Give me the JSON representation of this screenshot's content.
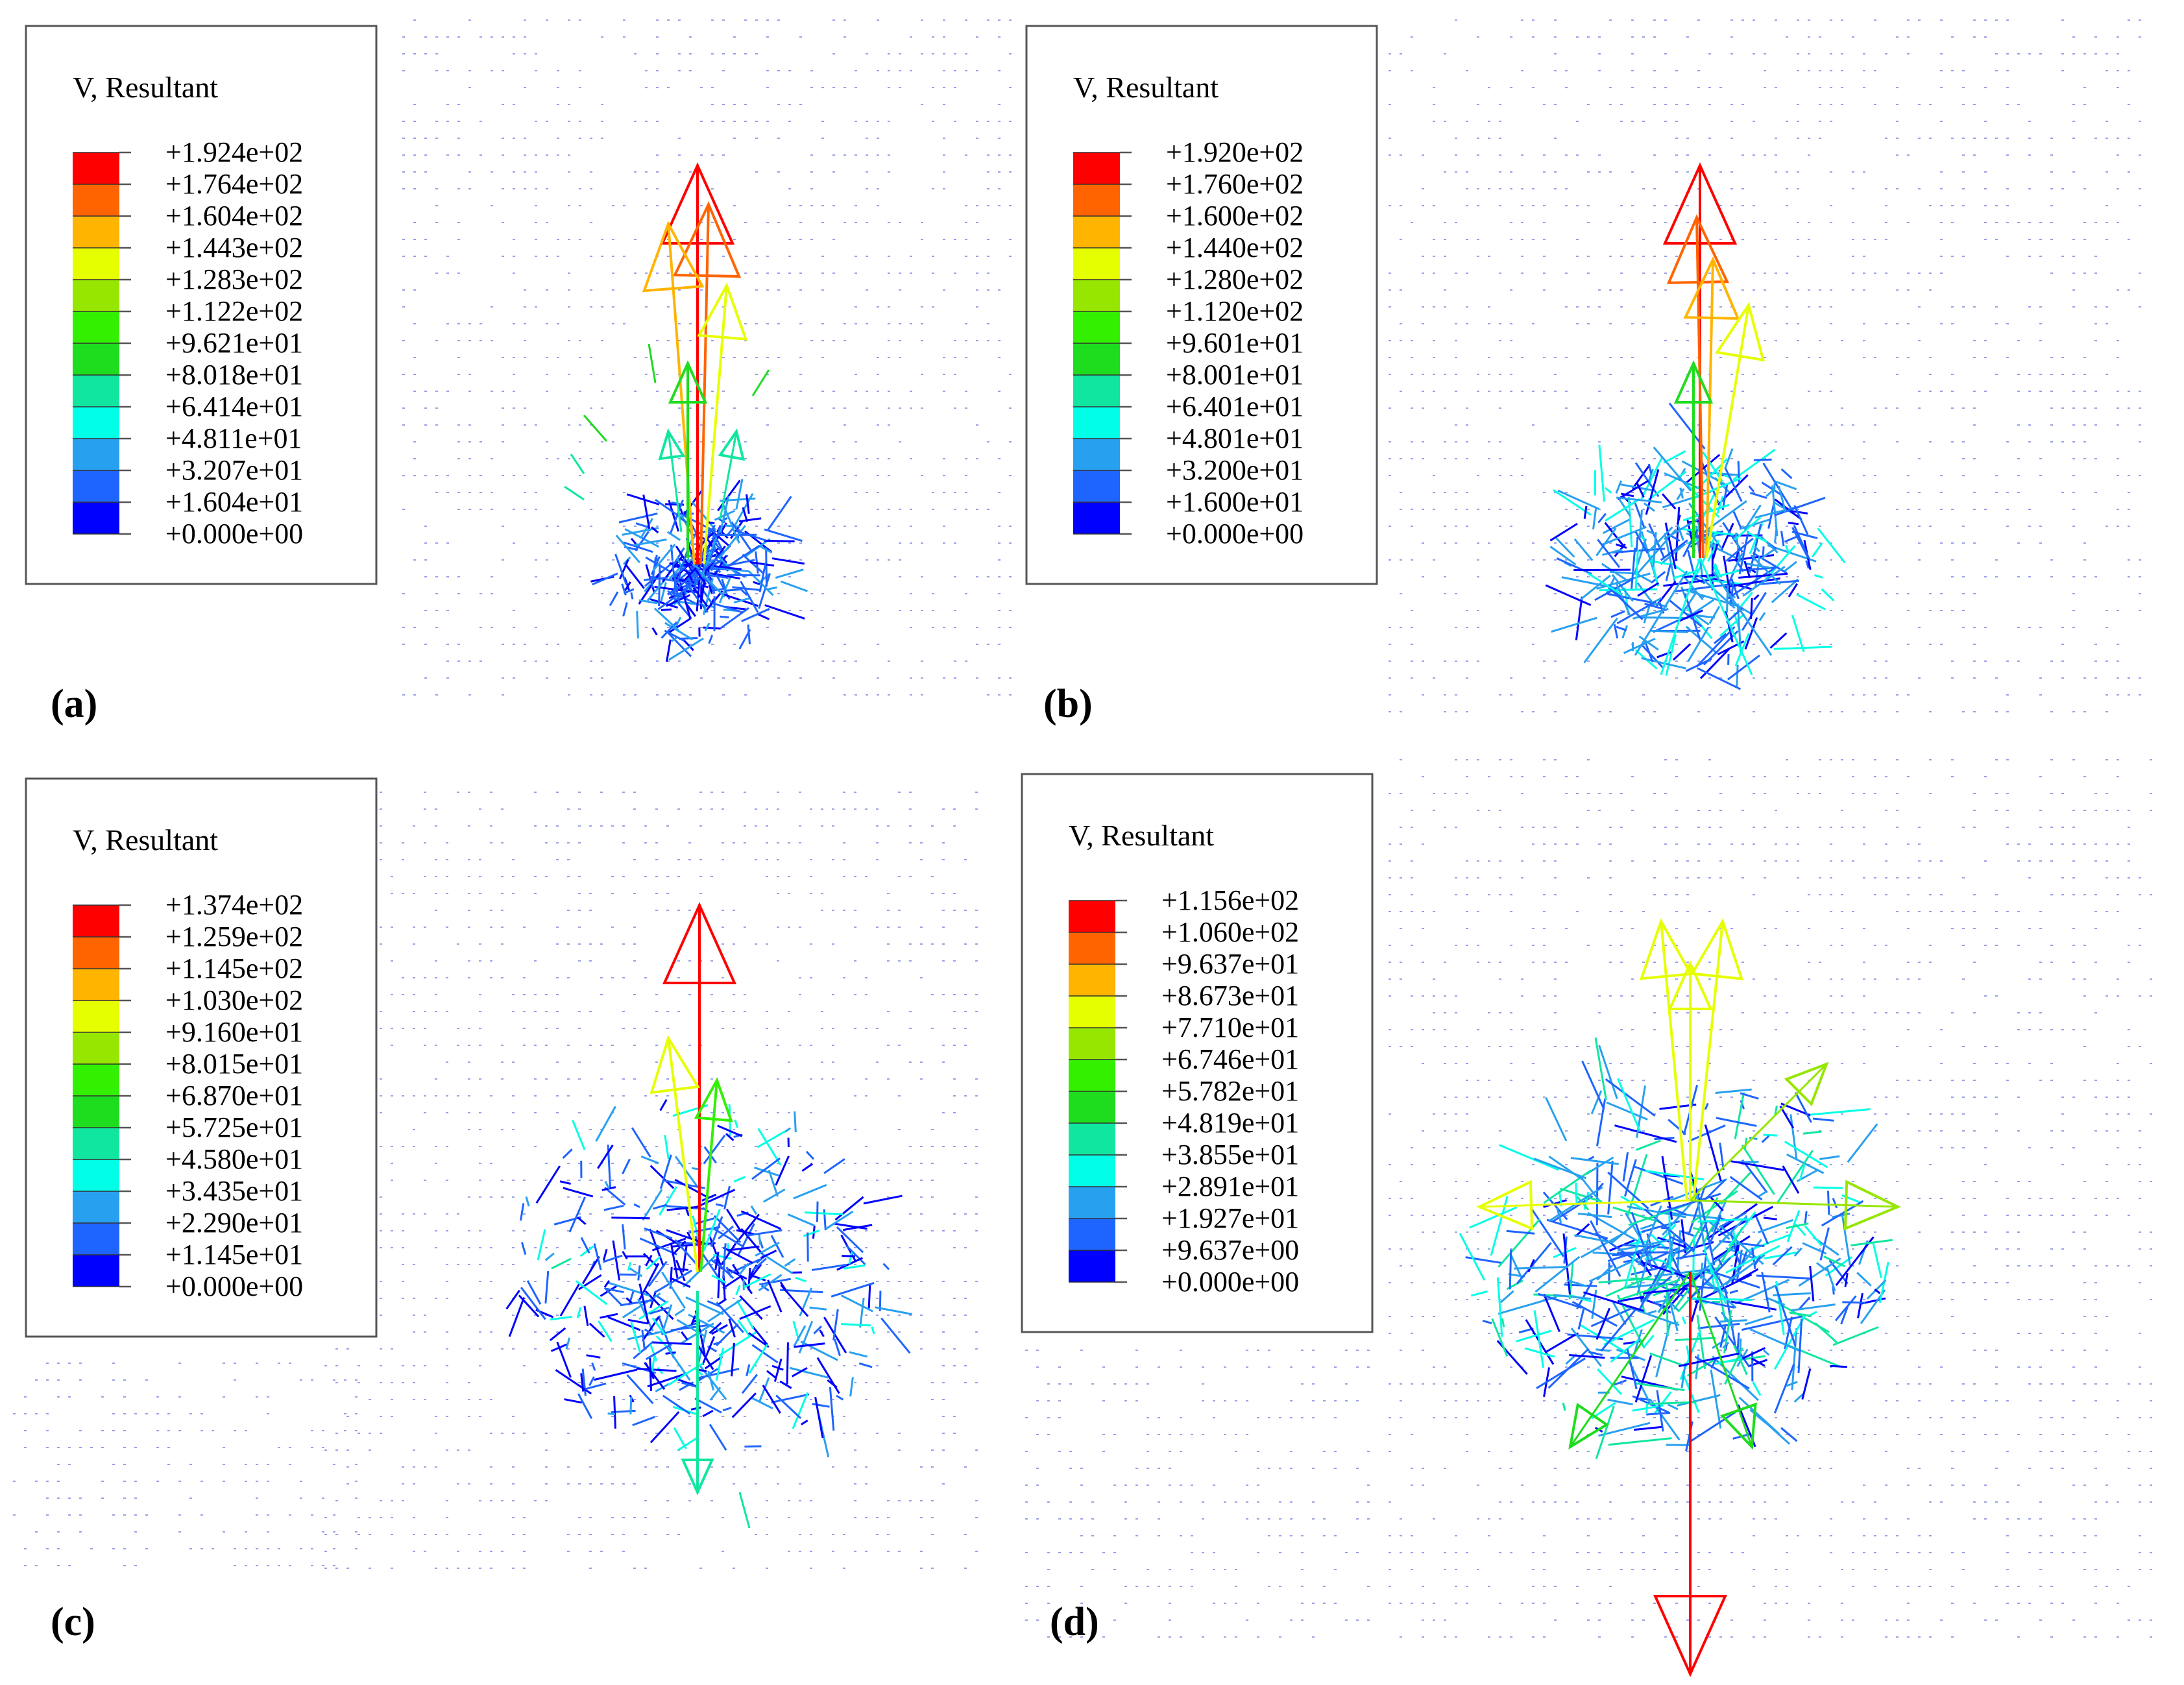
{
  "colorscale": [
    "#0000ff",
    "#1e64ff",
    "#28a0f0",
    "#00ffe6",
    "#10e6a0",
    "#1edc1e",
    "#32f000",
    "#96e600",
    "#e6ff00",
    "#ffb400",
    "#ff6400",
    "#ff0000"
  ],
  "panels": [
    {
      "id": "a",
      "label": "(a)",
      "legend": {
        "title": "V, Resultant",
        "values": [
          "+1.924e+02",
          "+1.764e+02",
          "+1.604e+02",
          "+1.443e+02",
          "+1.283e+02",
          "+1.122e+02",
          "+9.621e+01",
          "+8.018e+01",
          "+6.414e+01",
          "+4.811e+01",
          "+3.207e+01",
          "+1.604e+01",
          "+0.000e+00"
        ]
      }
    },
    {
      "id": "b",
      "label": "(b)",
      "legend": {
        "title": "V, Resultant",
        "values": [
          "+1.920e+02",
          "+1.760e+02",
          "+1.600e+02",
          "+1.440e+02",
          "+1.280e+02",
          "+1.120e+02",
          "+9.601e+01",
          "+8.001e+01",
          "+6.401e+01",
          "+4.801e+01",
          "+3.200e+01",
          "+1.600e+01",
          "+0.000e+00"
        ]
      }
    },
    {
      "id": "c",
      "label": "(c)",
      "legend": {
        "title": "V, Resultant",
        "values": [
          "+1.374e+02",
          "+1.259e+02",
          "+1.145e+02",
          "+1.030e+02",
          "+9.160e+01",
          "+8.015e+01",
          "+6.870e+01",
          "+5.725e+01",
          "+4.580e+01",
          "+3.435e+01",
          "+2.290e+01",
          "+1.145e+01",
          "+0.000e+00"
        ]
      }
    },
    {
      "id": "d",
      "label": "(d)",
      "legend": {
        "title": "V, Resultant",
        "values": [
          "+1.156e+02",
          "+1.060e+02",
          "+9.637e+01",
          "+8.673e+01",
          "+7.710e+01",
          "+6.746e+01",
          "+5.782e+01",
          "+4.819e+01",
          "+3.855e+01",
          "+2.891e+01",
          "+1.927e+01",
          "+9.637e+00",
          "+0.000e+00"
        ]
      }
    }
  ]
}
